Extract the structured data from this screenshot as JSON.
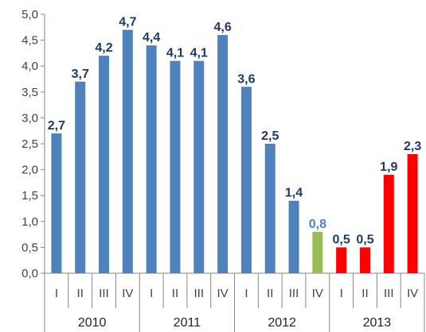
{
  "chart_data": {
    "type": "bar",
    "ylim": [
      0,
      5.0
    ],
    "y_ticks": [
      "0,0",
      "0,5",
      "1,0",
      "1,5",
      "2,0",
      "2,5",
      "3,0",
      "3,5",
      "4,0",
      "4,5",
      "5,0"
    ],
    "grid": false,
    "years": [
      "2010",
      "2011",
      "2012",
      "2013"
    ],
    "quarters": [
      "I",
      "II",
      "III",
      "IV"
    ],
    "categories": [
      "2010 I",
      "2010 II",
      "2010 III",
      "2010 IV",
      "2011 I",
      "2011 II",
      "2011 III",
      "2011 IV",
      "2012 I",
      "2012 II",
      "2012 III",
      "2012 IV",
      "2013 I",
      "2013 II",
      "2013 III",
      "2013 IV"
    ],
    "values": [
      2.7,
      3.7,
      4.2,
      4.7,
      4.4,
      4.1,
      4.1,
      4.6,
      3.6,
      2.5,
      1.4,
      0.8,
      0.5,
      0.5,
      1.9,
      2.3
    ],
    "labels": [
      "2,7",
      "3,7",
      "4,2",
      "4,7",
      "4,4",
      "4,1",
      "4,1",
      "4,6",
      "3,6",
      "2,5",
      "1,4",
      "0,8",
      "0,5",
      "0,5",
      "1,9",
      "2,3"
    ],
    "bar_colors": [
      "#4f81bd",
      "#4f81bd",
      "#4f81bd",
      "#4f81bd",
      "#4f81bd",
      "#4f81bd",
      "#4f81bd",
      "#4f81bd",
      "#4f81bd",
      "#4f81bd",
      "#4f81bd",
      "#9bbb59",
      "#ff0000",
      "#ff0000",
      "#ff0000",
      "#ff0000"
    ],
    "label_colors": [
      "#1f3864",
      "#1f3864",
      "#1f3864",
      "#1f3864",
      "#1f3864",
      "#1f3864",
      "#1f3864",
      "#1f3864",
      "#1f3864",
      "#1f3864",
      "#1f3864",
      "#4f81bd",
      "#1f3864",
      "#1f3864",
      "#1f3864",
      "#1f3864"
    ]
  }
}
